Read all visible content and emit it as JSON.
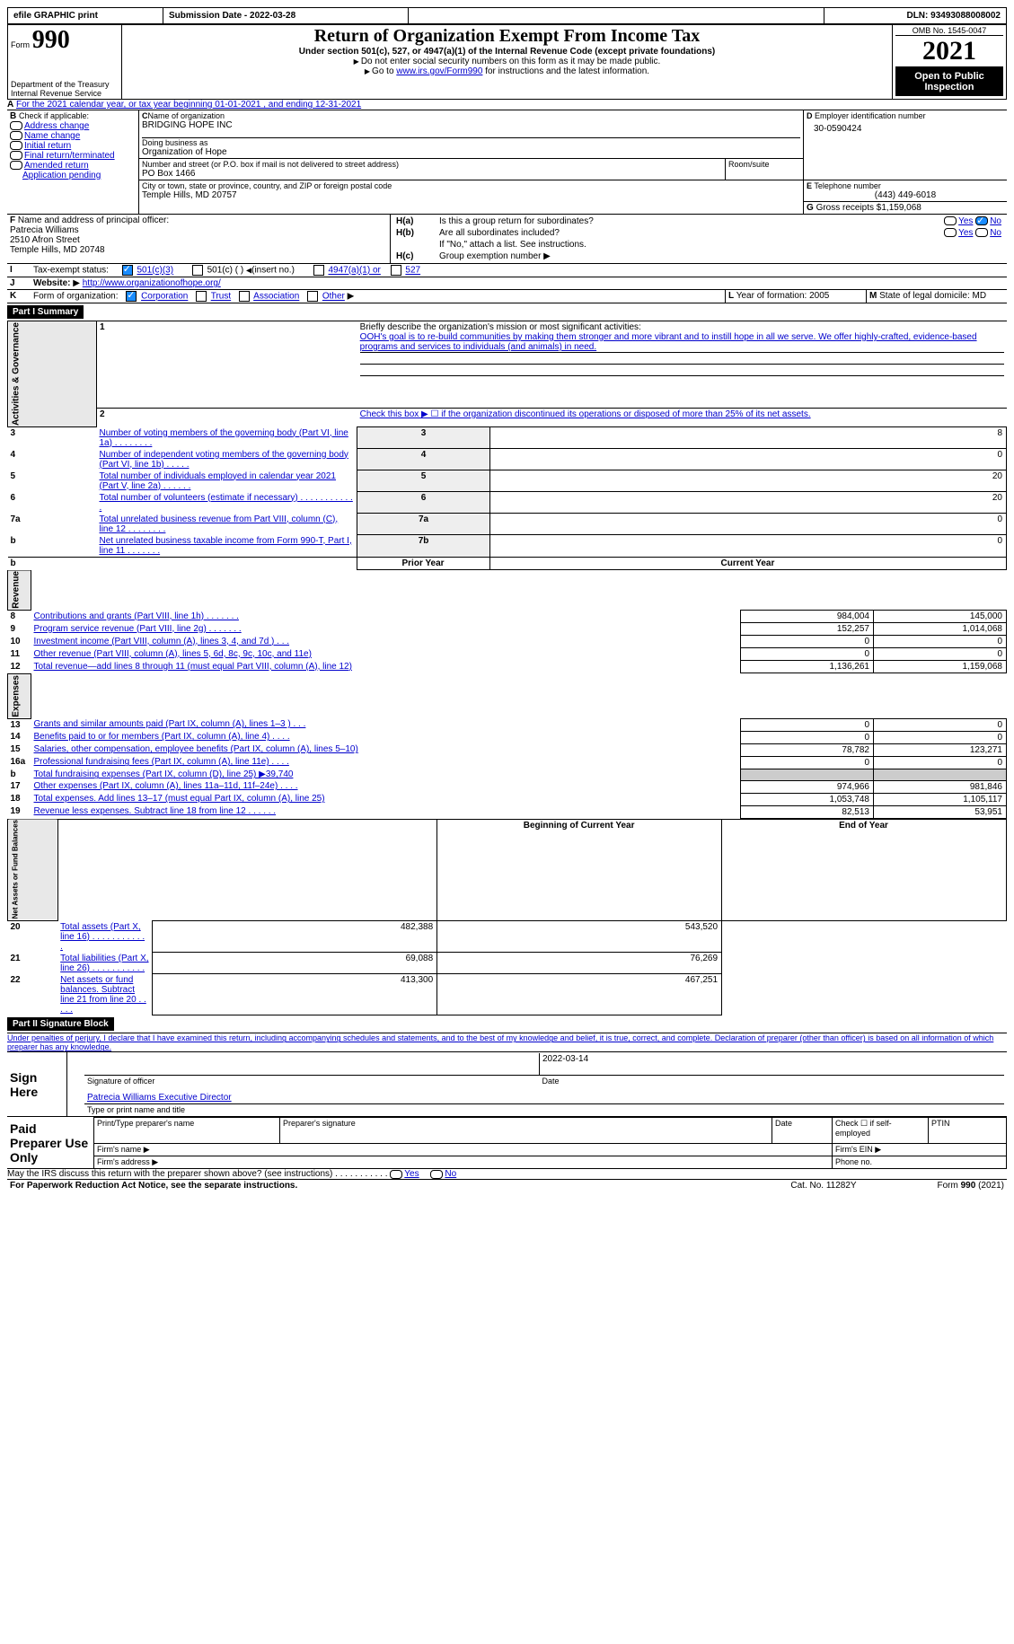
{
  "header_bar": {
    "efile": "efile GRAPHIC print",
    "submission_label": "Submission Date - 2022-03-28",
    "dln_label": "DLN: 93493088008002"
  },
  "title_block": {
    "form_label": "Form",
    "form_num": "990",
    "title": "Return of Organization Exempt From Income Tax",
    "subtitle": "Under section 501(c), 527, or 4947(a)(1) of the Internal Revenue Code (except private foundations)",
    "note1": "Do not enter social security numbers on this form as it may be made public.",
    "note2_pre": "Go to ",
    "note2_link": "www.irs.gov/Form990",
    "note2_post": " for instructions and the latest information.",
    "dept": "Department of the Treasury\nInternal Revenue Service",
    "omb": "OMB No. 1545-0047",
    "year": "2021",
    "open_public": "Open to Public Inspection"
  },
  "sectionA": "For the 2021 calendar year, or tax year beginning 01-01-2021   , and ending 12-31-2021",
  "sectionB": {
    "label": "Check if applicable:",
    "items": [
      "Address change",
      "Name change",
      "Initial return",
      "Final return/terminated",
      "Amended return",
      "Application pending"
    ]
  },
  "sectionC": {
    "name_label": "Name of organization",
    "name": "BRIDGING HOPE INC",
    "dba_label": "Doing business as",
    "dba": "Organization of Hope",
    "street_label": "Number and street (or P.O. box if mail is not delivered to street address)",
    "room_label": "Room/suite",
    "street": "PO Box 1466",
    "city_label": "City or town, state or province, country, and ZIP or foreign postal code",
    "city": "Temple Hills, MD  20757"
  },
  "sectionD": {
    "label": "Employer identification number",
    "value": "30-0590424"
  },
  "sectionE": {
    "label": "Telephone number",
    "value": "(443) 449-6018"
  },
  "sectionG": {
    "label": "Gross receipts $",
    "value": "1,159,068"
  },
  "sectionF": {
    "label": "Name and address of principal officer:",
    "name": "Patrecia Williams",
    "addr1": "2510 Afron Street",
    "addr2": "Temple Hills, MD  20748"
  },
  "sectionH": {
    "a": "Is this a group return for subordinates?",
    "b": "Are all subordinates included?",
    "note": "If \"No,\" attach a list. See instructions.",
    "c": "Group exemption number"
  },
  "sectionI": {
    "label": "Tax-exempt status:",
    "opts": {
      "a": "501(c)(3)",
      "b": "501(c) (  ) ",
      "b2": "(insert no.)",
      "c": "4947(a)(1) or",
      "d": "527"
    }
  },
  "sectionJ": {
    "label": "Website:",
    "value": "http://www.organizationofhope.org/"
  },
  "sectionK": {
    "label": "Form of organization:",
    "opts": {
      "a": "Corporation",
      "b": "Trust",
      "c": "Association",
      "d": "Other"
    }
  },
  "sectionL": {
    "label": "Year of formation:",
    "value": "2005"
  },
  "sectionM": {
    "label": "State of legal domicile:",
    "value": "MD"
  },
  "partI": {
    "header": "Part I    Summary",
    "line1_label": "Briefly describe the organization's mission or most significant activities:",
    "line1_text": "OOH's goal is to re-build communities by making them stronger and more vibrant and to instill hope in all we serve. We offer highly-crafted, evidence-based programs and services to individuals (and animals) in need.",
    "line2": "Check this box ▶ ☐ if the organization discontinued its operations or disposed of more than 25% of its net assets.",
    "sidebar1": "Activities & Governance",
    "lines_gov": [
      {
        "n": "3",
        "t": "Number of voting members of the governing body (Part VI, line 1a)  .   .   .   .   .   .   .   .",
        "box": "3",
        "v": "8"
      },
      {
        "n": "4",
        "t": "Number of independent voting members of the governing body (Part VI, line 1b)  .   .   .   .   .",
        "box": "4",
        "v": "0"
      },
      {
        "n": "5",
        "t": "Total number of individuals employed in calendar year 2021 (Part V, line 2a)  .   .   .   .   .   .",
        "box": "5",
        "v": "20"
      },
      {
        "n": "6",
        "t": "Total number of volunteers (estimate if necessary)  .   .   .   .   .   .   .   .   .   .   .   .",
        "box": "6",
        "v": "20"
      },
      {
        "n": "7a",
        "t": "Total unrelated business revenue from Part VIII, column (C), line 12  .   .   .   .   .   .   .   .",
        "box": "7a",
        "v": "0"
      },
      {
        "n": "b",
        "t": "Net unrelated business taxable income from Form 990-T, Part I, line 11  .   .   .   .   .   .   .",
        "box": "7b",
        "v": "0"
      }
    ],
    "col_headers": {
      "prior": "Prior Year",
      "current": "Current Year"
    },
    "sidebar2": "Revenue",
    "lines_rev": [
      {
        "n": "8",
        "t": "Contributions and grants (Part VIII, line 1h)  .   .   .   .   .   .   .",
        "p": "984,004",
        "c": "145,000"
      },
      {
        "n": "9",
        "t": "Program service revenue (Part VIII, line 2g)  .   .   .   .   .   .   .",
        "p": "152,257",
        "c": "1,014,068"
      },
      {
        "n": "10",
        "t": "Investment income (Part VIII, column (A), lines 3, 4, and 7d )  .   .   .",
        "p": "0",
        "c": "0"
      },
      {
        "n": "11",
        "t": "Other revenue (Part VIII, column (A), lines 5, 6d, 8c, 9c, 10c, and 11e)",
        "p": "0",
        "c": "0"
      },
      {
        "n": "12",
        "t": "Total revenue—add lines 8 through 11 (must equal Part VIII, column (A), line 12)",
        "p": "1,136,261",
        "c": "1,159,068"
      }
    ],
    "sidebar3": "Expenses",
    "lines_exp": [
      {
        "n": "13",
        "t": "Grants and similar amounts paid (Part IX, column (A), lines 1–3 )  .   .   .",
        "p": "0",
        "c": "0"
      },
      {
        "n": "14",
        "t": "Benefits paid to or for members (Part IX, column (A), line 4)  .   .   .   .",
        "p": "0",
        "c": "0"
      },
      {
        "n": "15",
        "t": "Salaries, other compensation, employee benefits (Part IX, column (A), lines 5–10)",
        "p": "78,782",
        "c": "123,271"
      },
      {
        "n": "16a",
        "t": "Professional fundraising fees (Part IX, column (A), line 11e)  .   .   .   .",
        "p": "0",
        "c": "0"
      },
      {
        "n": "b",
        "t": "Total fundraising expenses (Part IX, column (D), line 25) ▶39,740",
        "p": "gray",
        "c": "gray"
      },
      {
        "n": "17",
        "t": "Other expenses (Part IX, column (A), lines 11a–11d, 11f–24e)  .   .   .   .",
        "p": "974,966",
        "c": "981,846"
      },
      {
        "n": "18",
        "t": "Total expenses. Add lines 13–17 (must equal Part IX, column (A), line 25)",
        "p": "1,053,748",
        "c": "1,105,117"
      },
      {
        "n": "19",
        "t": "Revenue less expenses. Subtract line 18 from line 12  .   .   .   .   .   .",
        "p": "82,513",
        "c": "53,951"
      }
    ],
    "col_headers2": {
      "prior": "Beginning of Current Year",
      "current": "End of Year"
    },
    "sidebar4": "Net Assets or Fund Balances",
    "lines_net": [
      {
        "n": "20",
        "t": "Total assets (Part X, line 16)  .   .   .   .   .   .   .   .   .   .   .   .",
        "p": "482,388",
        "c": "543,520"
      },
      {
        "n": "21",
        "t": "Total liabilities (Part X, line 26)  .   .   .   .   .   .   .   .   .   .   .",
        "p": "69,088",
        "c": "76,269"
      },
      {
        "n": "22",
        "t": "Net assets or fund balances. Subtract line 21 from line 20  .   .   .   .   .",
        "p": "413,300",
        "c": "467,251"
      }
    ]
  },
  "partII": {
    "header": "Part II    Signature Block",
    "perjury": "Under penalties of perjury, I declare that I have examined this return, including accompanying schedules and statements, and to the best of my knowledge and belief, it is true, correct, and complete. Declaration of preparer (other than officer) is based on all information of which preparer has any knowledge.",
    "sign_here": "Sign Here",
    "sig_officer": "Signature of officer",
    "date": "2022-03-14",
    "date_label": "Date",
    "typed_name": "Patrecia Williams  Executive Director",
    "typed_label": "Type or print name and title",
    "paid": "Paid Preparer Use Only",
    "p1": "Print/Type preparer's name",
    "p2": "Preparer's signature",
    "p3": "Date",
    "p4": "Check ☐ if self-employed",
    "p5": "PTIN",
    "p6": "Firm's name  ▶",
    "p7": "Firm's EIN ▶",
    "p8": "Firm's address ▶",
    "p9": "Phone no.",
    "discuss": "May the IRS discuss this return with the preparer shown above? (see instructions)  .   .   .   .   .   .   .   .   .   .   .",
    "footer_left": "For Paperwork Reduction Act Notice, see the separate instructions.",
    "footer_mid": "Cat. No. 11282Y",
    "footer_right": "Form 990 (2021)"
  },
  "common": {
    "yes": "Yes",
    "no": "No",
    "B": "B",
    "C": "C",
    "D": "D",
    "E": "E",
    "F": "F",
    "G": "G",
    "I": "I",
    "J": "J",
    "K": "K",
    "L": "L",
    "M": "M",
    "H_a": "H(a)",
    "H_b": "H(b)",
    "H_c": "H(c)",
    "A": "A",
    "1": "1",
    "2": "2",
    "b": "b"
  }
}
